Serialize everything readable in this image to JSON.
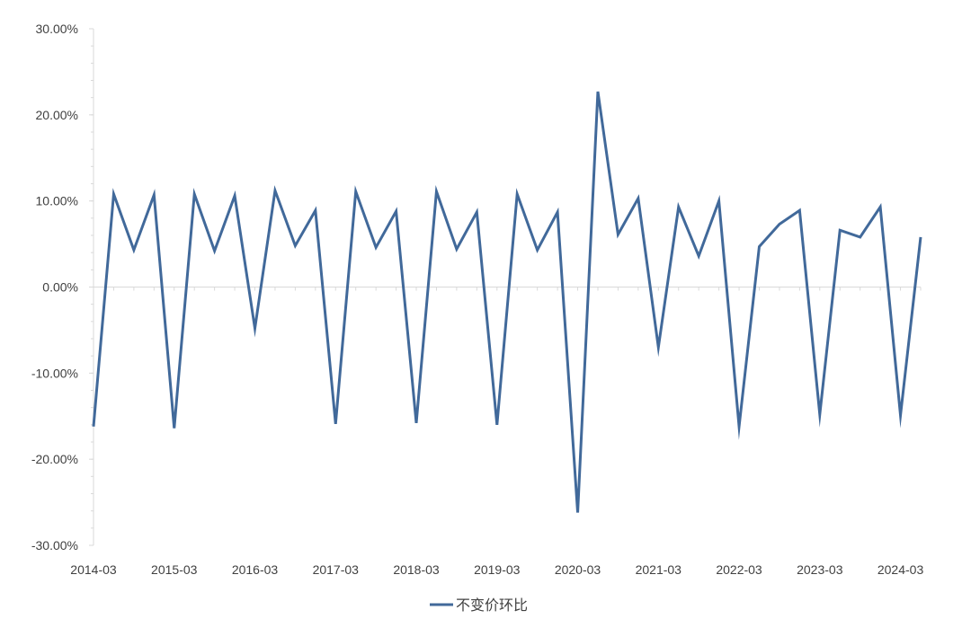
{
  "chart_data": {
    "type": "line",
    "title": "",
    "xlabel": "",
    "ylabel": "",
    "ylim": [
      -0.3,
      0.3
    ],
    "y_ticks": [
      "30.00%",
      "20.00%",
      "10.00%",
      "0.00%",
      "-10.00%",
      "-20.00%",
      "-30.00%"
    ],
    "x_tick_labels": [
      "2014-03",
      "2015-03",
      "2016-03",
      "2017-03",
      "2018-03",
      "2019-03",
      "2020-03",
      "2021-03",
      "2022-03",
      "2023-03",
      "2024-03"
    ],
    "grid": false,
    "legend_position": "bottom",
    "x": [
      "2014-03",
      "2014-06",
      "2014-09",
      "2014-12",
      "2015-03",
      "2015-06",
      "2015-09",
      "2015-12",
      "2016-03",
      "2016-06",
      "2016-09",
      "2016-12",
      "2017-03",
      "2017-06",
      "2017-09",
      "2017-12",
      "2018-03",
      "2018-06",
      "2018-09",
      "2018-12",
      "2019-03",
      "2019-06",
      "2019-09",
      "2019-12",
      "2020-03",
      "2020-06",
      "2020-09",
      "2020-12",
      "2021-03",
      "2021-06",
      "2021-09",
      "2021-12",
      "2022-03",
      "2022-06",
      "2022-09",
      "2022-12",
      "2023-03",
      "2023-06",
      "2023-09",
      "2023-12",
      "2024-03",
      "2024-06"
    ],
    "series": [
      {
        "name": "不变价环比",
        "color": "#41699a",
        "values": [
          -0.162,
          0.108,
          0.043,
          0.107,
          -0.164,
          0.108,
          0.042,
          0.106,
          -0.048,
          0.112,
          0.048,
          0.089,
          -0.159,
          0.111,
          0.046,
          0.088,
          -0.158,
          0.111,
          0.044,
          0.087,
          -0.16,
          0.108,
          0.043,
          0.087,
          -0.262,
          0.227,
          0.061,
          0.103,
          -0.07,
          0.093,
          0.036,
          0.1,
          -0.162,
          0.047,
          0.073,
          0.089,
          -0.148,
          0.066,
          0.058,
          0.093,
          -0.149,
          0.058
        ]
      }
    ]
  }
}
